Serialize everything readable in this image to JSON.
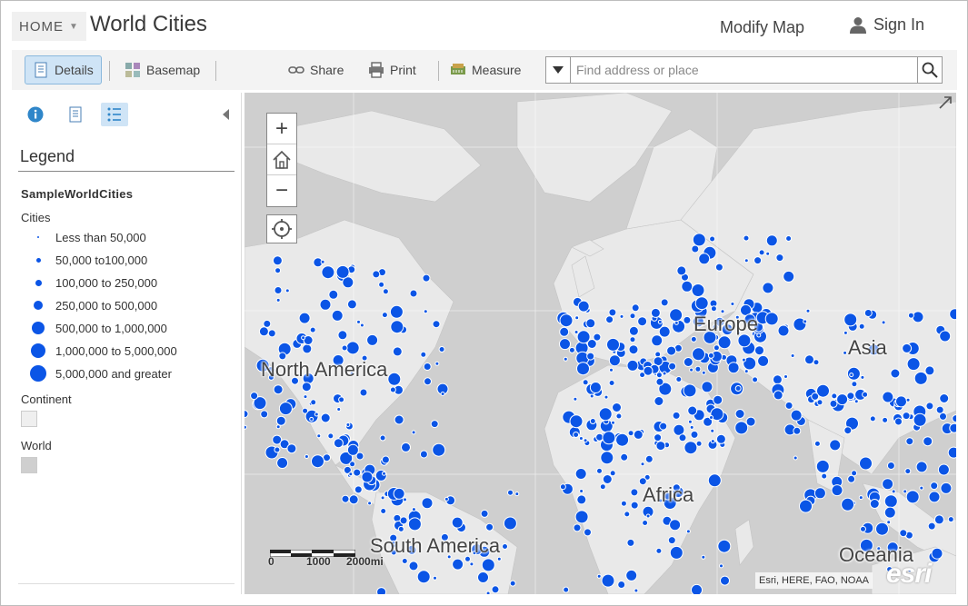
{
  "header": {
    "home_label": "HOME",
    "title": "World Cities",
    "modify_map": "Modify Map",
    "sign_in": "Sign In"
  },
  "toolbar": {
    "details": "Details",
    "basemap": "Basemap",
    "share": "Share",
    "print": "Print",
    "measure": "Measure",
    "search_placeholder": "Find address or place"
  },
  "panel": {
    "legend_title": "Legend",
    "layer_name": "SampleWorldCities",
    "cities_label": "Cities",
    "classes": [
      {
        "label": "Less than 50,000"
      },
      {
        "label": "50,000 to100,000"
      },
      {
        "label": "100,000 to 250,000"
      },
      {
        "label": "250,000 to 500,000"
      },
      {
        "label": "500,000 to 1,000,000"
      },
      {
        "label": "1,000,000 to 5,000,000"
      },
      {
        "label": "5,000,000 and greater"
      }
    ],
    "continent_label": "Continent",
    "world_label": "World"
  },
  "map": {
    "labels": {
      "north_america": "North America",
      "europe": "Europe",
      "asia": "Asia",
      "africa": "Africa",
      "south_america": "South America",
      "oceania": "Oceania"
    },
    "scale": {
      "s0": "0",
      "s1": "1000",
      "s2": "2000mi"
    },
    "attribution": "Esri, HERE, FAO, NOAA",
    "logo": "esri"
  },
  "colors": {
    "city_dot": "#0b55e6",
    "land": "#e9e9e9",
    "ocean": "#cfcfcf",
    "active_tab": "#cfe4f6"
  }
}
